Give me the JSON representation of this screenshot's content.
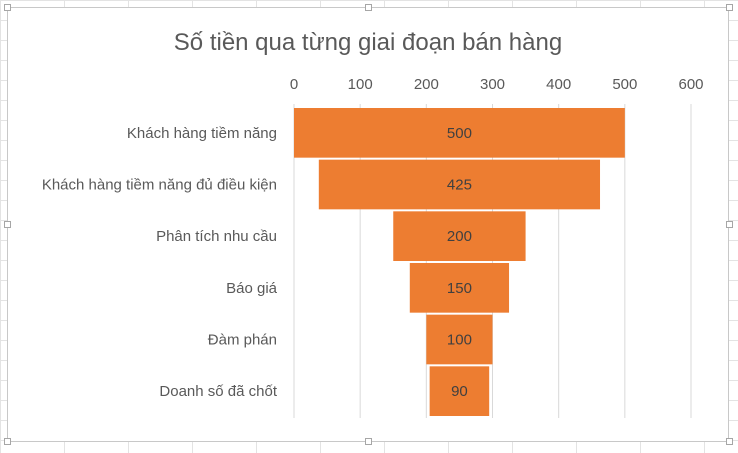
{
  "chart_data": {
    "type": "bar",
    "subtype": "funnel",
    "title": "Số tiền qua từng giai đoạn bán hàng",
    "categories": [
      "Khách hàng tiềm năng",
      "Khách hàng tiềm năng đủ điều kiện",
      "Phân tích nhu cầu",
      "Báo giá",
      "Đàm phán",
      "Doanh số đã chốt"
    ],
    "values": [
      500,
      425,
      200,
      150,
      100,
      90
    ],
    "xlim": [
      0,
      600
    ],
    "xticks": [
      "0",
      "100",
      "200",
      "300",
      "400",
      "500",
      "600"
    ],
    "bar_color": "#ED7D31",
    "grid": "vertical",
    "xaxis_position": "top",
    "legend": "none"
  }
}
